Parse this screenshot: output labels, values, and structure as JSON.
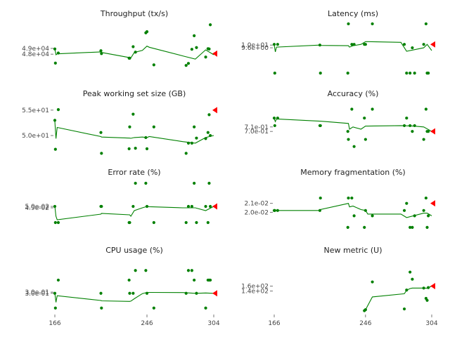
{
  "figure": {
    "line_color": "#008000",
    "marker_color": "#008000",
    "current_marker_color": "#ff0000"
  },
  "chart_data": [
    {
      "type": "line",
      "title": "Throughput (tx/s)",
      "xlim": [
        166,
        304
      ],
      "ylim": [
        44000,
        53500
      ],
      "yticks": [
        48000,
        49000
      ],
      "ytick_labels": [
        "4.8e+04",
        "4.9e+04"
      ],
      "xticks": [],
      "xtick_labels": [],
      "line": {
        "x": [
          166,
          167,
          168,
          206,
          206.5,
          231,
          232,
          235,
          242,
          246,
          248,
          277,
          288,
          297,
          304
        ],
        "y": [
          48950,
          47900,
          48050,
          48400,
          48300,
          47400,
          47350,
          48300,
          48650,
          49400,
          49200,
          47700,
          47150,
          48750,
          47900
        ]
      },
      "points": {
        "x": [
          166,
          166.5,
          169,
          206,
          206.5,
          230.5,
          231,
          234,
          236,
          245,
          246,
          252,
          280,
          282,
          285,
          287,
          289,
          297,
          299,
          300,
          301
        ],
        "y": [
          48900,
          46450,
          48200,
          48600,
          48100,
          47300,
          47300,
          49300,
          48350,
          51700,
          51900,
          46150,
          46050,
          46400,
          48850,
          51200,
          49150,
          47500,
          48950,
          48900,
          53100
        ]
      },
      "current": {
        "x": 304,
        "y": 48100
      }
    },
    {
      "type": "line",
      "title": "Latency (ms)",
      "xlim": [
        166,
        304
      ],
      "ylim": [
        5.3,
        13.3
      ],
      "yticks": [
        9.6,
        10.0
      ],
      "ytick_labels": [
        "9.6e+00",
        "1.0e+01"
      ],
      "xticks": [],
      "xtick_labels": [],
      "line": {
        "x": [
          166,
          167,
          168,
          206,
          206.5,
          231,
          232,
          235,
          242,
          246,
          248,
          277,
          282,
          297,
          300,
          304
        ],
        "y": [
          10.0,
          9.0,
          9.7,
          10.0,
          9.95,
          9.9,
          9.7,
          9.9,
          10.1,
          10.5,
          10.5,
          10.4,
          9.1,
          9.6,
          10.1,
          9.2
        ]
      },
      "points": {
        "x": [
          166,
          166.5,
          169,
          206,
          206.5,
          230.5,
          231,
          234,
          236,
          245,
          246,
          252,
          280,
          282,
          285,
          287,
          289,
          297,
          299,
          300,
          301
        ],
        "y": [
          10.1,
          5.9,
          10.1,
          10.0,
          5.9,
          5.9,
          13.1,
          10.1,
          10.1,
          10.1,
          10.1,
          13.1,
          10.1,
          5.9,
          5.9,
          9.6,
          5.9,
          10.1,
          13.1,
          5.9,
          5.9
        ]
      },
      "current": {
        "x": 304,
        "y": 10.1
      }
    },
    {
      "type": "line",
      "title": "Peak working set size (GB)",
      "xlim": [
        166,
        304
      ],
      "ylim": [
        46.0,
        56.5
      ],
      "yticks": [
        50.0,
        55.0
      ],
      "ytick_labels": [
        "5.0e+01",
        "5.5e+01"
      ],
      "xticks": [],
      "xtick_labels": [],
      "line": {
        "x": [
          166,
          167,
          168,
          206,
          206.5,
          231,
          232,
          235,
          242,
          246,
          248,
          277,
          288,
          297,
          304
        ],
        "y": [
          52.8,
          49.4,
          51.6,
          49.8,
          49.7,
          49.5,
          49.45,
          49.6,
          49.7,
          49.6,
          49.8,
          48.8,
          48.5,
          49.6,
          50.0
        ]
      },
      "points": {
        "x": [
          166,
          166.5,
          169,
          206,
          206.5,
          230.5,
          231,
          234,
          236,
          245,
          246,
          252,
          280,
          282,
          285,
          287,
          289,
          297,
          299,
          300,
          301
        ],
        "y": [
          53.0,
          47.3,
          55.1,
          50.6,
          46.5,
          47.4,
          51.7,
          54.2,
          47.5,
          49.6,
          47.4,
          51.7,
          46.5,
          48.5,
          48.5,
          51.7,
          49.5,
          49.4,
          50.6,
          54.1,
          50.0
        ]
      },
      "current": {
        "x": 304,
        "y": 55.0
      }
    },
    {
      "type": "line",
      "title": "Accuracy (%)",
      "xlim": [
        166,
        304
      ],
      "ylim": [
        0.645,
        0.765
      ],
      "yticks": [
        0.7,
        0.71
      ],
      "ytick_labels": [
        "7.0e-01",
        "7.1e-01"
      ],
      "xticks": [],
      "xtick_labels": [],
      "line": {
        "x": [
          166,
          167,
          168,
          206,
          206.5,
          231,
          232,
          235,
          242,
          246,
          248,
          277,
          288,
          297,
          304
        ],
        "y": [
          0.728,
          0.722,
          0.728,
          0.723,
          0.723,
          0.718,
          0.705,
          0.71,
          0.705,
          0.712,
          0.712,
          0.713,
          0.712,
          0.71,
          0.7
        ]
      },
      "points": {
        "x": [
          166,
          166.5,
          169,
          206,
          206.5,
          230.5,
          231,
          234,
          236,
          245,
          246,
          252,
          280,
          282,
          285,
          287,
          289,
          297,
          299,
          300,
          301
        ],
        "y": [
          0.73,
          0.713,
          0.73,
          0.713,
          0.713,
          0.7,
          0.682,
          0.75,
          0.666,
          0.73,
          0.682,
          0.75,
          0.713,
          0.73,
          0.713,
          0.7,
          0.713,
          0.682,
          0.75,
          0.7,
          0.7
        ]
      },
      "current": {
        "x": 304,
        "y": 0.7
      }
    },
    {
      "type": "line",
      "title": "Error rate (%)",
      "xlim": [
        166,
        304
      ],
      "ylim": [
        0.03,
        0.068
      ],
      "yticks": [
        0.049,
        0.05
      ],
      "ytick_labels": [
        "4.9e-02",
        "5.0e-02"
      ],
      "xticks": [],
      "xtick_labels": [],
      "line": {
        "x": [
          166,
          167,
          168,
          206,
          206.5,
          231,
          232,
          235,
          242,
          246,
          248,
          277,
          288,
          297,
          304
        ],
        "y": [
          0.05,
          0.043,
          0.0405,
          0.0445,
          0.045,
          0.044,
          0.043,
          0.047,
          0.049,
          0.05,
          0.0498,
          0.049,
          0.049,
          0.047,
          0.05
        ]
      },
      "points": {
        "x": [
          166,
          166.5,
          169,
          206,
          206.5,
          230.5,
          231,
          234,
          236,
          245,
          246,
          252,
          280,
          282,
          285,
          287,
          289,
          297,
          299,
          300,
          301
        ],
        "y": [
          0.05,
          0.0385,
          0.0385,
          0.05,
          0.05,
          0.0385,
          0.0385,
          0.05,
          0.0665,
          0.0665,
          0.05,
          0.0385,
          0.0385,
          0.05,
          0.05,
          0.0665,
          0.0385,
          0.05,
          0.0385,
          0.0665,
          0.05
        ]
      },
      "current": {
        "x": 304,
        "y": 0.05
      }
    },
    {
      "type": "line",
      "title": "Memory fragmentation (%)",
      "xlim": [
        166,
        304
      ],
      "ylim": [
        0.0175,
        0.0235
      ],
      "yticks": [
        0.02,
        0.021
      ],
      "ytick_labels": [
        "2.0e-02",
        "2.1e-02"
      ],
      "xticks": [],
      "xtick_labels": [],
      "line": {
        "x": [
          166,
          167,
          168,
          206,
          206.5,
          231,
          232,
          235,
          242,
          246,
          248,
          277,
          282,
          297,
          300,
          304
        ],
        "y": [
          0.0202,
          0.0202,
          0.0202,
          0.0202,
          0.0203,
          0.021,
          0.0206,
          0.0207,
          0.0203,
          0.0202,
          0.0198,
          0.0198,
          0.0194,
          0.0199,
          0.0199,
          0.0196
        ]
      },
      "points": {
        "x": [
          166,
          166.5,
          169,
          206,
          206.5,
          230.5,
          231,
          234,
          236,
          245,
          246,
          252,
          280,
          282,
          285,
          287,
          289,
          297,
          299,
          300,
          301
        ],
        "y": [
          0.0202,
          0.0202,
          0.0202,
          0.0202,
          0.0216,
          0.0183,
          0.0216,
          0.0216,
          0.0196,
          0.0183,
          0.0202,
          0.0196,
          0.0202,
          0.021,
          0.0183,
          0.0183,
          0.0196,
          0.0202,
          0.0216,
          0.0183,
          0.0196
        ]
      },
      "current": {
        "x": 304,
        "y": 0.021
      }
    },
    {
      "type": "line",
      "title": "CPU usage (%)",
      "xlim": [
        166,
        304
      ],
      "ylim": [
        0.23,
        0.41
      ],
      "yticks": [
        0.296,
        0.3
      ],
      "ytick_labels": [
        "3.0e-01",
        "3.0e-01"
      ],
      "xticks": [
        166,
        246,
        304
      ],
      "xtick_labels": [
        "166",
        "246",
        "304"
      ],
      "line": {
        "x": [
          166,
          167,
          168,
          206,
          206.5,
          231,
          232,
          235,
          242,
          246,
          248,
          277,
          288,
          297,
          304
        ],
        "y": [
          0.296,
          0.266,
          0.288,
          0.272,
          0.271,
          0.269,
          0.27,
          0.278,
          0.295,
          0.299,
          0.299,
          0.2985,
          0.296,
          0.297,
          0.296
        ]
      },
      "points": {
        "x": [
          166,
          166.5,
          169,
          206,
          206.5,
          230.5,
          231,
          234,
          236,
          245,
          246,
          252,
          280,
          282,
          285,
          287,
          289,
          297,
          299,
          300,
          301
        ],
        "y": [
          0.296,
          0.247,
          0.34,
          0.296,
          0.247,
          0.34,
          0.296,
          0.296,
          0.372,
          0.372,
          0.296,
          0.247,
          0.296,
          0.372,
          0.372,
          0.34,
          0.296,
          0.247,
          0.34,
          0.34,
          0.34
        ]
      },
      "current": {
        "x": 304,
        "y": 0.296
      }
    },
    {
      "type": "line",
      "title": "New metric (U)",
      "xlim": [
        166,
        304
      ],
      "ylim": [
        50,
        270
      ],
      "yticks": [
        140,
        160
      ],
      "ytick_labels": [
        "1.4e+02",
        "1.6e+02"
      ],
      "xticks": [
        166,
        246,
        304
      ],
      "xtick_labels": [
        "166",
        "246",
        "304"
      ],
      "line": {
        "x": [
          245,
          246,
          252,
          280,
          282,
          285,
          287,
          297,
          300,
          304
        ],
        "y": [
          60,
          64,
          116,
          129,
          143,
          150,
          152,
          152,
          151,
          160
        ]
      },
      "points": {
        "x": [
          245,
          246,
          252,
          280,
          282,
          285,
          287,
          297,
          299,
          300,
          301
        ],
        "y": [
          60,
          64,
          177,
          67,
          144,
          217,
          188,
          152,
          110,
          102,
          154
        ]
      },
      "current": {
        "x": 304,
        "y": 160
      }
    }
  ]
}
